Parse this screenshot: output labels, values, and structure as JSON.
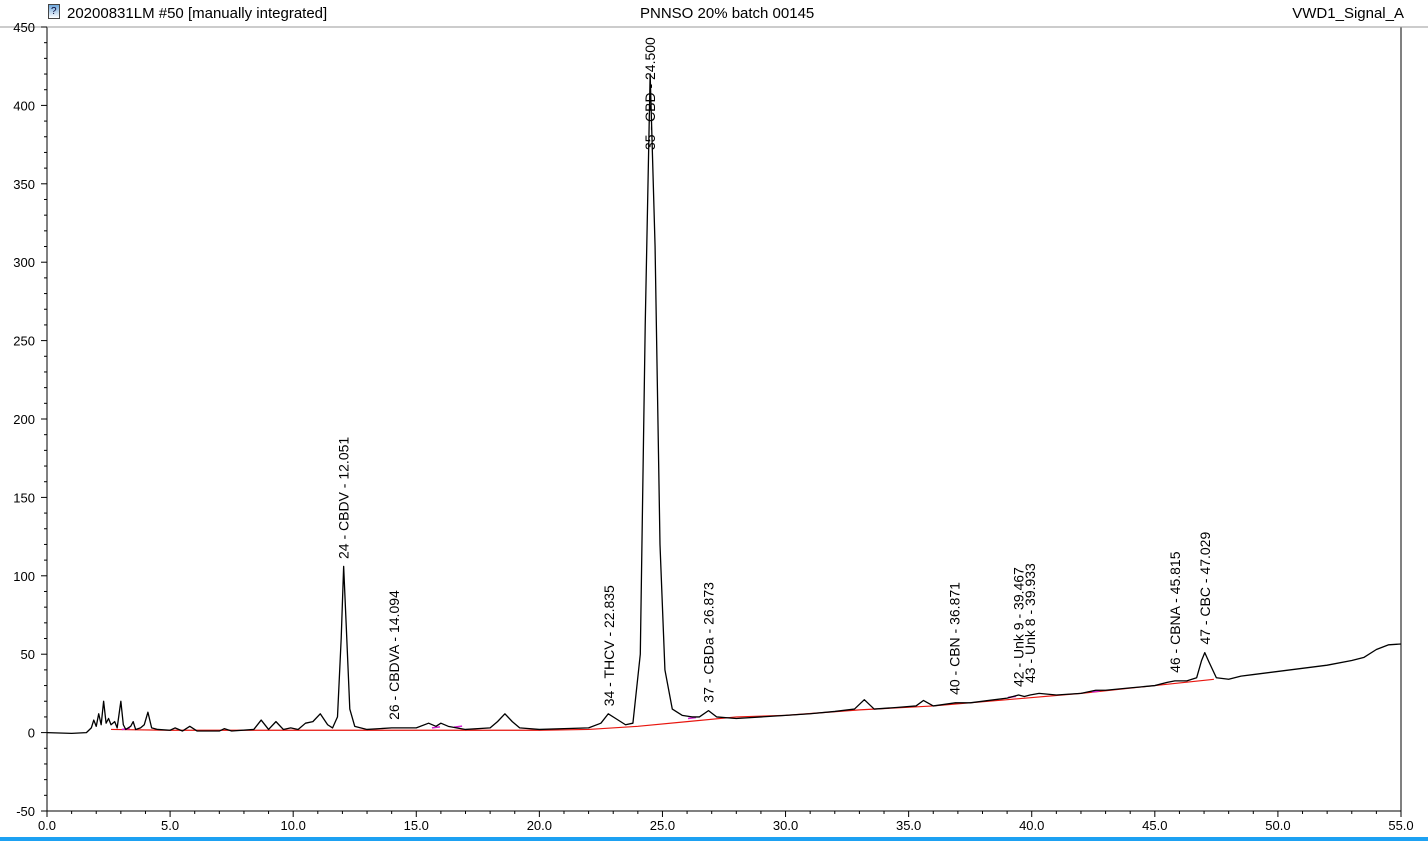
{
  "header": {
    "left": "20200831LM #50 [manually integrated]",
    "center": "PNNSO 20% batch 00145",
    "right": "VWD1_Signal_A"
  },
  "colors": {
    "signal": "#000000",
    "baseline": "#e8160f",
    "integration": "#d01fd0",
    "accent": "#1da1f2"
  },
  "chart_data": {
    "type": "line",
    "title": "PNNSO 20% batch 00145",
    "xlabel": "",
    "ylabel": "",
    "xlim": [
      0,
      55
    ],
    "ylim": [
      -50,
      450
    ],
    "x_ticks": [
      0,
      5,
      10,
      15,
      20,
      25,
      30,
      35,
      40,
      45,
      50,
      55
    ],
    "x_tick_labels": [
      "0.0",
      "5.0",
      "10.0",
      "15.0",
      "20.0",
      "25.0",
      "30.0",
      "35.0",
      "40.0",
      "45.0",
      "50.0",
      "55.0"
    ],
    "y_ticks": [
      -50,
      0,
      50,
      100,
      150,
      200,
      250,
      300,
      350,
      400,
      450
    ],
    "y_tick_labels": [
      "-50",
      "0",
      "50",
      "100",
      "150",
      "200",
      "250",
      "300",
      "350",
      "400",
      "450"
    ],
    "grid": false,
    "series": [
      {
        "points": [
          [
            0,
            0
          ],
          [
            1.0,
            -0.5
          ],
          [
            1.6,
            0
          ],
          [
            1.8,
            3
          ],
          [
            1.9,
            8
          ],
          [
            2.0,
            4
          ],
          [
            2.1,
            12
          ],
          [
            2.2,
            5
          ],
          [
            2.3,
            20
          ],
          [
            2.4,
            6
          ],
          [
            2.5,
            9
          ],
          [
            2.6,
            5
          ],
          [
            2.75,
            7
          ],
          [
            2.85,
            3
          ],
          [
            3.0,
            20
          ],
          [
            3.1,
            5
          ],
          [
            3.2,
            2
          ],
          [
            3.4,
            4
          ],
          [
            3.5,
            7
          ],
          [
            3.6,
            2
          ],
          [
            3.8,
            3
          ],
          [
            3.95,
            5
          ],
          [
            4.1,
            13
          ],
          [
            4.25,
            3
          ],
          [
            4.5,
            2
          ],
          [
            5.0,
            1.5
          ],
          [
            5.2,
            3
          ],
          [
            5.5,
            1
          ],
          [
            5.8,
            4
          ],
          [
            6.1,
            1
          ],
          [
            7.0,
            1
          ],
          [
            7.2,
            2.5
          ],
          [
            7.5,
            1
          ],
          [
            8.4,
            2
          ],
          [
            8.7,
            8
          ],
          [
            9.0,
            2
          ],
          [
            9.3,
            7
          ],
          [
            9.6,
            2
          ],
          [
            9.9,
            3
          ],
          [
            10.2,
            2
          ],
          [
            10.5,
            6
          ],
          [
            10.8,
            7
          ],
          [
            11.1,
            12
          ],
          [
            11.4,
            5
          ],
          [
            11.6,
            3
          ],
          [
            11.8,
            10
          ],
          [
            11.95,
            60
          ],
          [
            12.05,
            106
          ],
          [
            12.15,
            70
          ],
          [
            12.3,
            15
          ],
          [
            12.5,
            4
          ],
          [
            13.0,
            2
          ],
          [
            14.0,
            3
          ],
          [
            15.0,
            3
          ],
          [
            15.5,
            6
          ],
          [
            15.8,
            4
          ],
          [
            16.0,
            6
          ],
          [
            16.3,
            4
          ],
          [
            17.0,
            2
          ],
          [
            18.0,
            3
          ],
          [
            18.3,
            7
          ],
          [
            18.6,
            12
          ],
          [
            18.9,
            7
          ],
          [
            19.2,
            3
          ],
          [
            20.0,
            2
          ],
          [
            22.0,
            3
          ],
          [
            22.5,
            6
          ],
          [
            22.8,
            12
          ],
          [
            23.1,
            9
          ],
          [
            23.5,
            5
          ],
          [
            23.8,
            6
          ],
          [
            24.1,
            50
          ],
          [
            24.3,
            260
          ],
          [
            24.5,
            420
          ],
          [
            24.7,
            310
          ],
          [
            24.9,
            120
          ],
          [
            25.1,
            40
          ],
          [
            25.4,
            15
          ],
          [
            25.8,
            11
          ],
          [
            26.2,
            10
          ],
          [
            26.5,
            10
          ],
          [
            26.87,
            14
          ],
          [
            27.2,
            10
          ],
          [
            28.0,
            9
          ],
          [
            29.0,
            10
          ],
          [
            30.0,
            11
          ],
          [
            31.0,
            12
          ],
          [
            32.0,
            13.5
          ],
          [
            32.8,
            15
          ],
          [
            33.2,
            21
          ],
          [
            33.6,
            15
          ],
          [
            34.5,
            16
          ],
          [
            35.3,
            17
          ],
          [
            35.6,
            20.5
          ],
          [
            36.0,
            17
          ],
          [
            36.9,
            19
          ],
          [
            37.5,
            19
          ],
          [
            38.5,
            21
          ],
          [
            39.0,
            22
          ],
          [
            39.467,
            24
          ],
          [
            39.7,
            23
          ],
          [
            39.933,
            24
          ],
          [
            40.3,
            25
          ],
          [
            41.0,
            24
          ],
          [
            42.0,
            25
          ],
          [
            42.6,
            27
          ],
          [
            43.0,
            27
          ],
          [
            44.0,
            28.5
          ],
          [
            45.0,
            30
          ],
          [
            45.5,
            32
          ],
          [
            45.815,
            33
          ],
          [
            46.3,
            33
          ],
          [
            46.7,
            35
          ],
          [
            46.9,
            46
          ],
          [
            47.029,
            51
          ],
          [
            47.2,
            45
          ],
          [
            47.5,
            35
          ],
          [
            48.0,
            34
          ],
          [
            48.5,
            36
          ],
          [
            49.0,
            37
          ],
          [
            50.0,
            39
          ],
          [
            51.0,
            41
          ],
          [
            52.0,
            43
          ],
          [
            53.0,
            46
          ],
          [
            53.5,
            48
          ],
          [
            54.0,
            53
          ],
          [
            54.5,
            56
          ],
          [
            55.0,
            56.5
          ]
        ]
      },
      {
        "points": [
          [
            2.6,
            2
          ],
          [
            5,
            1.5
          ],
          [
            8,
            1.5
          ],
          [
            12,
            1.5
          ],
          [
            16,
            1.5
          ],
          [
            20,
            1.5
          ],
          [
            22,
            2
          ],
          [
            24,
            4
          ],
          [
            26,
            7
          ],
          [
            28,
            10
          ],
          [
            30,
            11
          ],
          [
            33,
            14.5
          ],
          [
            36,
            17
          ],
          [
            39,
            21
          ],
          [
            42,
            25
          ],
          [
            45,
            30
          ],
          [
            47.4,
            34
          ]
        ]
      }
    ],
    "annotations": [
      {
        "x": 12.051,
        "text": "24 - CBDV - 12.051"
      },
      {
        "x": 14.094,
        "text": "26 - CBDVA - 14.094"
      },
      {
        "x": 22.835,
        "text": "34 - THCV - 22.835"
      },
      {
        "x": 24.5,
        "text": "35 - CBD - 24.500"
      },
      {
        "x": 26.873,
        "text": "37 - CBDa - 26.873"
      },
      {
        "x": 36.871,
        "text": "40 - CBN - 36.871"
      },
      {
        "x": 39.467,
        "text": "42 - Unk 9 - 39.467"
      },
      {
        "x": 39.933,
        "text": "43 - Unk 8 - 39.933"
      },
      {
        "x": 45.815,
        "text": "46 - CBNA - 45.815"
      },
      {
        "x": 47.029,
        "text": "47 - CBC - 47.029"
      }
    ]
  }
}
